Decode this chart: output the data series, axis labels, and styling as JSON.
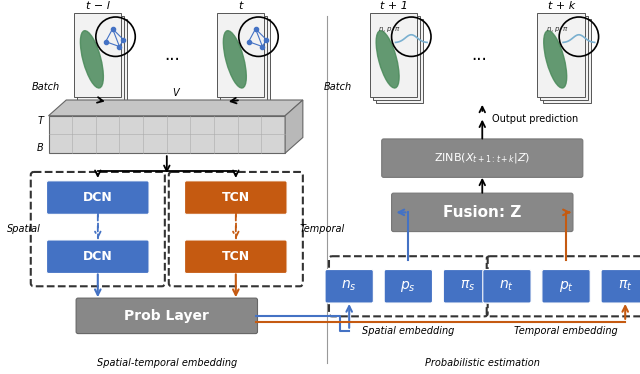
{
  "bg_color": "#ffffff",
  "blue_color": "#4472C4",
  "orange_color": "#C55A11",
  "gray_color": "#808080",
  "arrow_blue": "#4472C4",
  "arrow_orange": "#C55A11",
  "arrow_black": "#000000",
  "left_label": "Spatial-temporal embedding",
  "right_label": "Probabilistic estimation",
  "t_minus_l": "t − l",
  "t_label": "t",
  "t_plus_1": "t + 1",
  "t_plus_k": "t + k"
}
